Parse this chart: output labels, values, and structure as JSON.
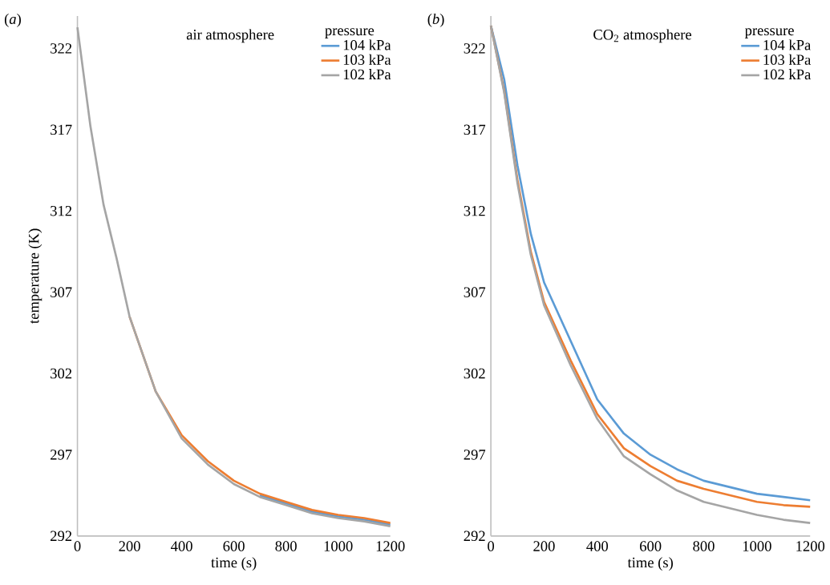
{
  "chart_data": [
    {
      "type": "line",
      "title": "(*a*)",
      "xlabel": "time (s)",
      "ylabel": "temperature (K)",
      "legend_title": "pressure",
      "annotations": [
        "air atmosphere"
      ],
      "x": [
        0,
        50,
        100,
        150,
        200,
        300,
        400,
        500,
        600,
        700,
        800,
        900,
        1000,
        1100,
        1200
      ],
      "series": [
        {
          "name": "104 kPa",
          "color": "#5b9bd5",
          "values": [
            null,
            null,
            null,
            null,
            null,
            null,
            null,
            null,
            null,
            294.5,
            294.0,
            293.5,
            293.2,
            293.0,
            292.7
          ]
        },
        {
          "name": "103 kPa",
          "color": "#ed7d31",
          "values": [
            null,
            null,
            null,
            null,
            305.5,
            300.9,
            298.2,
            296.6,
            295.4,
            294.6,
            294.1,
            293.6,
            293.3,
            293.1,
            292.8
          ]
        },
        {
          "name": "102 kPa",
          "color": "#a5a5a5",
          "values": [
            323.3,
            317.2,
            312.4,
            309.1,
            305.5,
            300.9,
            298.0,
            296.4,
            295.2,
            294.4,
            293.9,
            293.4,
            293.1,
            292.9,
            292.6
          ]
        }
      ],
      "xlim": [
        0,
        1200
      ],
      "ylim": [
        292,
        324
      ],
      "xticks": [
        0,
        200,
        400,
        600,
        800,
        1000,
        1200
      ],
      "yticks": [
        292,
        297,
        302,
        307,
        312,
        317,
        322
      ],
      "grid": false,
      "legend": "top right",
      "marker": "none",
      "line_style": "solid"
    },
    {
      "type": "line",
      "title": "(*b*)",
      "xlabel": "time (s)",
      "legend_title": "pressure",
      "annotations": [
        "CO$_{2}$ atmosphere"
      ],
      "x": [
        0,
        50,
        100,
        150,
        200,
        300,
        400,
        500,
        600,
        700,
        800,
        900,
        1000,
        1100,
        1200
      ],
      "series": [
        {
          "name": "104 kPa",
          "color": "#5b9bd5",
          "values": [
            323.4,
            320.1,
            314.8,
            310.6,
            307.6,
            304.0,
            300.4,
            298.3,
            297.0,
            296.1,
            295.4,
            295.0,
            294.6,
            294.4,
            294.2
          ]
        },
        {
          "name": "103 kPa",
          "color": "#ed7d31",
          "values": [
            323.4,
            319.4,
            313.9,
            309.5,
            306.4,
            302.8,
            299.5,
            297.4,
            296.3,
            295.4,
            294.9,
            294.5,
            294.1,
            293.9,
            293.8
          ]
        },
        {
          "name": "102 kPa",
          "color": "#a5a5a5",
          "values": [
            323.4,
            319.3,
            313.7,
            309.3,
            306.2,
            302.5,
            299.2,
            296.9,
            295.8,
            294.8,
            294.1,
            293.7,
            293.3,
            293.0,
            292.8
          ]
        }
      ],
      "xlim": [
        0,
        1200
      ],
      "ylim": [
        292,
        324
      ],
      "xticks": [
        0,
        200,
        400,
        600,
        800,
        1000,
        1200
      ],
      "yticks": [
        292,
        297,
        302,
        307,
        312,
        317,
        322
      ],
      "grid": false,
      "legend": "top right",
      "marker": "none",
      "line_style": "solid"
    }
  ]
}
